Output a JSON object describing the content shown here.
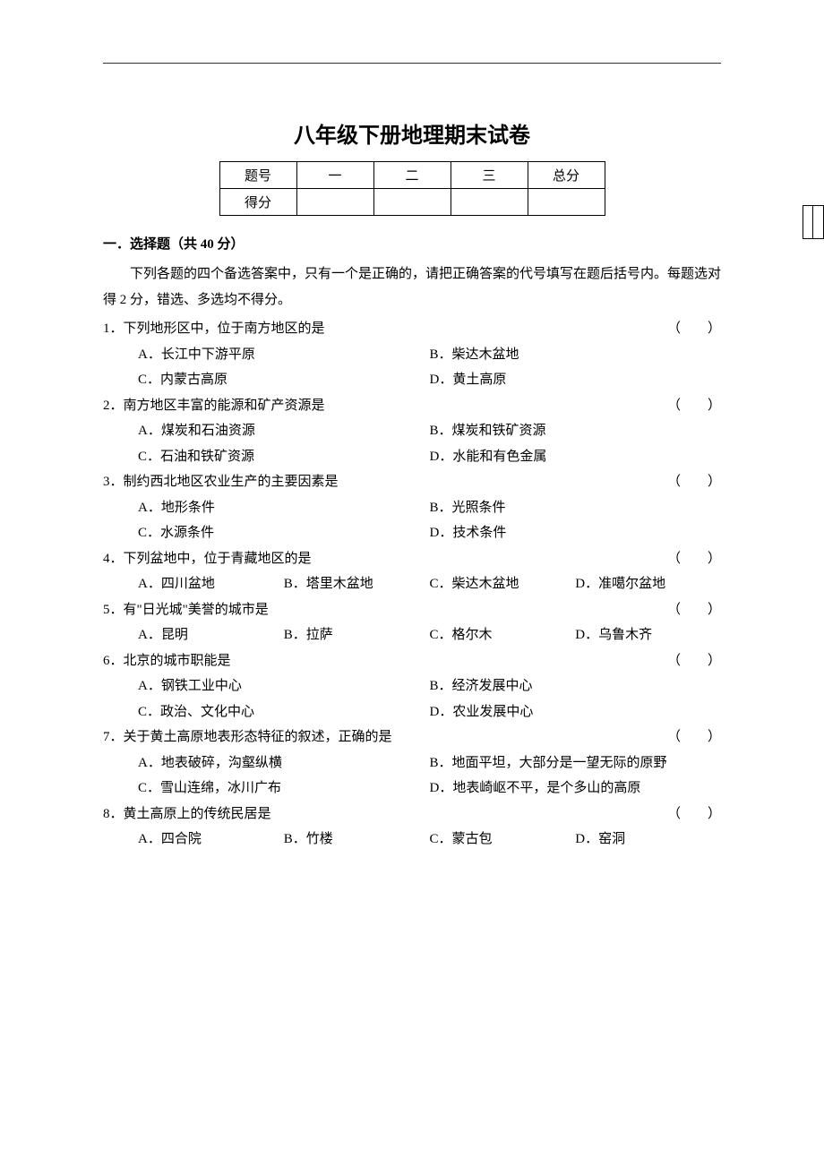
{
  "title": "八年级下册地理期末试卷",
  "score_table": {
    "row1": [
      "题号",
      "一",
      "二",
      "三",
      "总分"
    ],
    "row2_label": "得分"
  },
  "section1": {
    "heading": "一．选择题（共 40 分）",
    "instruction": "下列各题的四个备选答案中，只有一个是正确的，请把正确答案的代号填写在题后括号内。每题选对得 2 分，错选、多选均不得分。"
  },
  "paren": "（　　）",
  "q1": {
    "stem": "1．下列地形区中，位于南方地区的是",
    "A": "A．长江中下游平原",
    "B": "B．柴达木盆地",
    "C": "C．内蒙古高原",
    "D": "D．黄土高原"
  },
  "q2": {
    "stem": "2．南方地区丰富的能源和矿产资源是",
    "A": "A．煤炭和石油资源",
    "B": "B．煤炭和铁矿资源",
    "C": "C．石油和铁矿资源",
    "D": "D．水能和有色金属"
  },
  "q3": {
    "stem": "3．制约西北地区农业生产的主要因素是",
    "A": "A．地形条件",
    "B": "B．光照条件",
    "C": "C．水源条件",
    "D": "D．技术条件"
  },
  "q4": {
    "stem": "4．下列盆地中，位于青藏地区的是",
    "A": "A．四川盆地",
    "B": "B．塔里木盆地",
    "C": "C．柴达木盆地",
    "D": "D．准噶尔盆地"
  },
  "q5": {
    "stem": "5．有\"日光城\"美誉的城市是",
    "A": "A．昆明",
    "B": "B．拉萨",
    "C": "C．格尔木",
    "D": "D．乌鲁木齐"
  },
  "q6": {
    "stem": "6．北京的城市职能是",
    "A": "A．钢铁工业中心",
    "B": "B．经济发展中心",
    "C": "C．政治、文化中心",
    "D": "D．农业发展中心"
  },
  "q7": {
    "stem": "7．关于黄土高原地表形态特征的叙述，正确的是",
    "A": "A．地表破碎，沟壑纵横",
    "B": "B．地面平坦，大部分是一望无际的原野",
    "C": "C．雪山连绵，冰川广布",
    "D": "D．地表崎岖不平，是个多山的高原"
  },
  "q8": {
    "stem": "8．黄土高原上的传统民居是",
    "A": "A．四合院",
    "B": "B．竹楼",
    "C": "C．蒙古包",
    "D": "D．窑洞"
  }
}
